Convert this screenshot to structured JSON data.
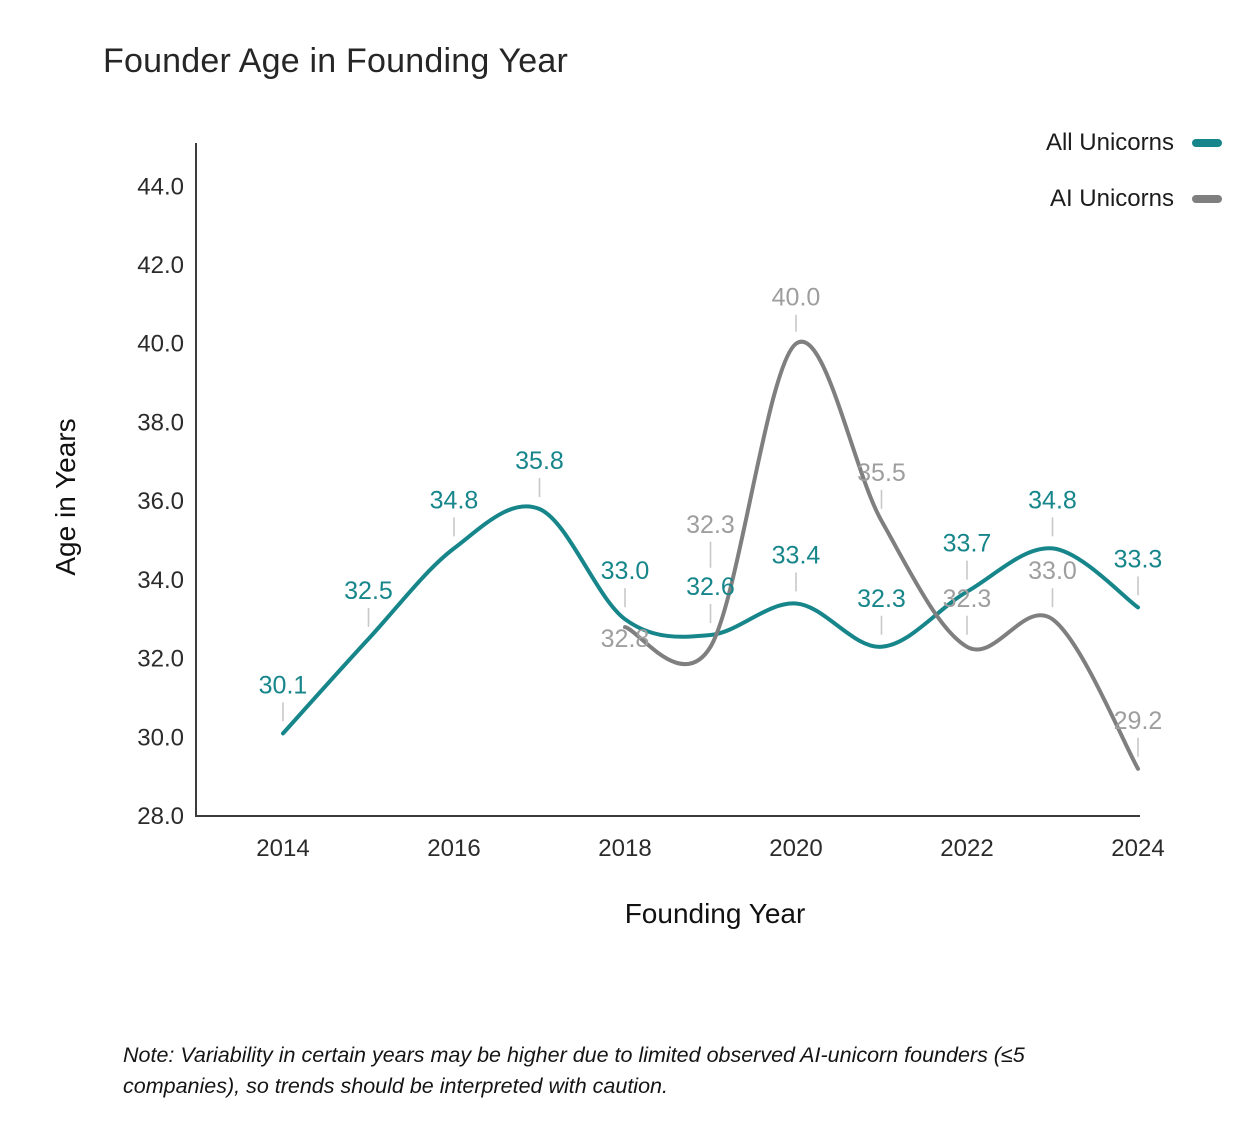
{
  "note": "Note: Variability in certain years may be higher due to limited observed AI-unicorn founders (≤5 companies), so trends should be interpreted with caution.",
  "chart_data": {
    "type": "line",
    "title": "Founder Age in Founding Year",
    "xlabel": "Founding Year",
    "ylabel": "Age in Years",
    "xlim": [
      2014,
      2024
    ],
    "ylim": [
      28,
      45.1
    ],
    "xticks": [
      2014,
      2016,
      2018,
      2020,
      2022,
      2024
    ],
    "yticks": [
      28,
      30,
      32,
      34,
      36,
      38,
      40,
      42,
      44
    ],
    "grid": false,
    "legend_position": "top-right",
    "series": [
      {
        "name": "All Unicorns",
        "color": "#17868b",
        "x": [
          2014,
          2015,
          2016,
          2017,
          2018,
          2019,
          2020,
          2021,
          2022,
          2023,
          2024
        ],
        "values": [
          30.1,
          32.5,
          34.8,
          35.8,
          33.0,
          32.6,
          33.4,
          32.3,
          33.7,
          34.8,
          33.3
        ]
      },
      {
        "name": "AI Unicorns",
        "color": "#7f7f7f",
        "label_color": "#9e9e9e",
        "x": [
          2018,
          2019,
          2020,
          2021,
          2022,
          2023,
          2024
        ],
        "values": [
          32.8,
          32.3,
          40.0,
          35.5,
          32.3,
          33.0,
          29.2
        ],
        "label_offsets": [
          20,
          -114,
          -38,
          -40,
          -40,
          -40,
          -40
        ]
      }
    ]
  }
}
